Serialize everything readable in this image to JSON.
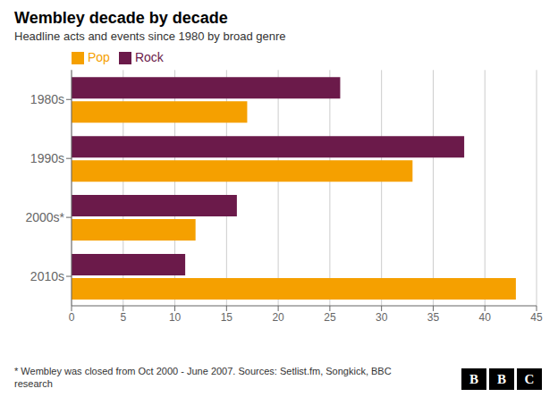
{
  "chart_data": {
    "type": "bar",
    "orientation": "horizontal",
    "title": "Wembley decade by decade",
    "subtitle": "Headline acts and events since 1980 by broad genre",
    "categories": [
      "1980s",
      "1990s",
      "2000s*",
      "2010s"
    ],
    "series": [
      {
        "name": "Rock",
        "color": "#6b1a4a",
        "values": [
          26,
          38,
          16,
          11
        ]
      },
      {
        "name": "Pop",
        "color": "#f5a000",
        "values": [
          17,
          33,
          12,
          43
        ]
      }
    ],
    "xlim": [
      0,
      45
    ],
    "xticks": [
      0,
      5,
      10,
      15,
      20,
      25,
      30,
      35,
      40,
      45
    ],
    "grid": true,
    "legend": "upper left",
    "annotations": [
      "* Wembley was closed from Oct 2000 - June 2007. Sources: Setlist.fm, Songkick, BBC\nresearch",
      "BBC"
    ]
  }
}
